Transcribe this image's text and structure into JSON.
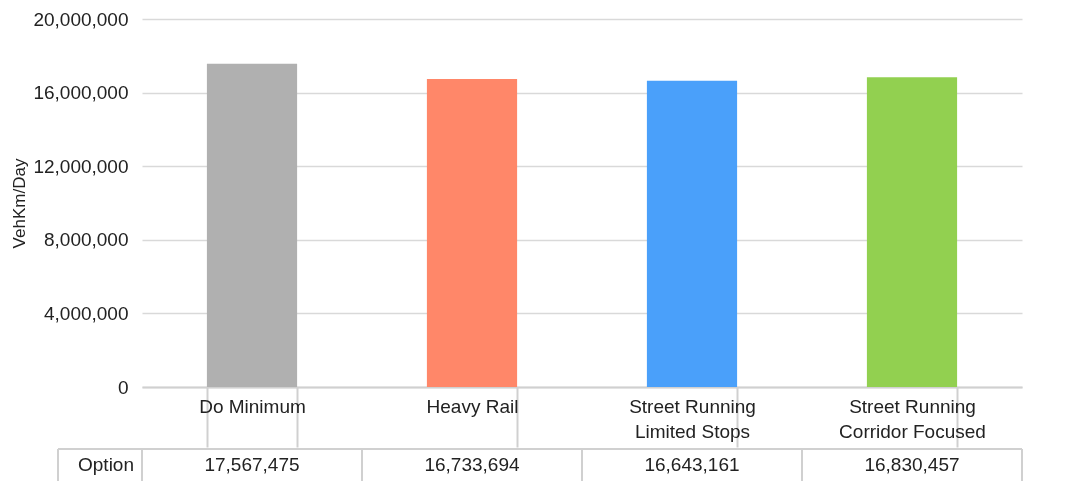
{
  "chart_data": {
    "type": "bar",
    "ylabel": "VehKm/Day",
    "xlabel": "Option",
    "categories": [
      "Do Minimum",
      "Heavy Rail",
      "Street Running Limited Stops",
      "Street Running Corridor Focused"
    ],
    "values": [
      17567475,
      16733694,
      16643161,
      16830457
    ],
    "colors": [
      "#b0b0b0",
      "#ff8769",
      "#4aa0fa",
      "#92d050"
    ],
    "ylim": [
      0,
      20000000
    ],
    "yticks": [
      0,
      {
        "value": 4000000,
        "label": "4,000,000"
      },
      {
        "value": 8000000,
        "label": "8,000,000"
      },
      {
        "value": 12000000,
        "label": "12,000,000"
      },
      {
        "value": 16000000,
        "label": "16,000,000"
      },
      {
        "value": 20000000,
        "label": "20,000,000"
      }
    ],
    "value_labels": [
      "17,567,475",
      "16,733,694",
      "16,643,161",
      "16,830,457"
    ],
    "grid": "y",
    "legend": false
  }
}
